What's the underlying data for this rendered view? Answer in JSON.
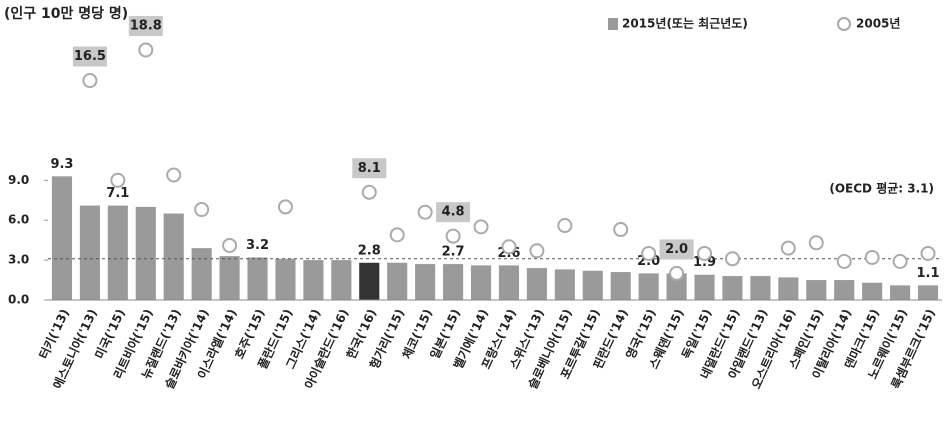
{
  "chart_data": {
    "type": "bar",
    "y_label": "(인구 10만 명당 명)",
    "categories": [
      "터키('13)",
      "에스토니아('13)",
      "미국('15)",
      "리트비아('15)",
      "뉴질랜드('13)",
      "슬로바키아('14)",
      "이스라엘('14)",
      "호주('15)",
      "폴란드('15)",
      "그리스('14)",
      "아이슬란드('16)",
      "한국('16)",
      "헝가리('15)",
      "체코('15)",
      "일본('15)",
      "벨기에('14)",
      "프랑스('14)",
      "스위스('13)",
      "슬로베니아('15)",
      "포르투갈('15)",
      "핀란드('14)",
      "영국('15)",
      "스웨덴('15)",
      "독일('15)",
      "네덜란드('15)",
      "아일랜드('13)",
      "오스트리아('16)",
      "스페인('15)",
      "이탈리아('14)",
      "덴마크('15)",
      "노르웨이('15)",
      "룩셈부르크('15)"
    ],
    "series": [
      {
        "name": "2015년(또는 최근년도)",
        "mark": "bar",
        "color": "#9a9a9a",
        "colors": [
          "#9a9a9a",
          "#9a9a9a",
          "#9a9a9a",
          "#9a9a9a",
          "#9a9a9a",
          "#9a9a9a",
          "#9a9a9a",
          "#9a9a9a",
          "#9a9a9a",
          "#9a9a9a",
          "#9a9a9a",
          "#333333",
          "#9a9a9a",
          "#9a9a9a",
          "#9a9a9a",
          "#9a9a9a",
          "#9a9a9a",
          "#9a9a9a",
          "#9a9a9a",
          "#9a9a9a",
          "#9a9a9a",
          "#9a9a9a",
          "#9a9a9a",
          "#9a9a9a",
          "#9a9a9a",
          "#9a9a9a",
          "#9a9a9a",
          "#9a9a9a",
          "#9a9a9a",
          "#9a9a9a",
          "#9a9a9a",
          "#9a9a9a"
        ],
        "values": [
          9.3,
          7.1,
          7.1,
          7.0,
          6.5,
          3.9,
          3.3,
          3.2,
          3.1,
          3.0,
          3.0,
          2.8,
          2.8,
          2.7,
          2.7,
          2.6,
          2.6,
          2.4,
          2.3,
          2.2,
          2.1,
          2.0,
          2.0,
          1.9,
          1.8,
          1.8,
          1.7,
          1.5,
          1.5,
          1.3,
          1.1,
          1.1
        ],
        "value_labels": [
          "9.3",
          null,
          "7.1",
          null,
          null,
          null,
          null,
          "3.2",
          null,
          null,
          null,
          "2.8",
          null,
          null,
          "2.7",
          null,
          "2.6",
          null,
          null,
          null,
          null,
          "2.0",
          null,
          "1.9",
          null,
          null,
          null,
          null,
          null,
          null,
          null,
          "1.1"
        ]
      },
      {
        "name": "2005년",
        "mark": "circle",
        "color": "#aaaaaa",
        "values": [
          null,
          16.5,
          9.0,
          18.8,
          9.4,
          6.8,
          4.1,
          null,
          7.0,
          null,
          null,
          8.1,
          4.9,
          6.6,
          4.8,
          5.5,
          4.0,
          3.7,
          5.6,
          null,
          5.3,
          3.5,
          2.0,
          3.5,
          3.1,
          null,
          3.9,
          4.3,
          2.9,
          3.2,
          2.9,
          3.5
        ],
        "value_labels": [
          null,
          "16.5",
          null,
          "18.8",
          null,
          null,
          null,
          null,
          null,
          null,
          null,
          "8.1",
          null,
          null,
          "4.8",
          null,
          null,
          null,
          null,
          null,
          null,
          null,
          "2.0",
          null,
          null,
          null,
          null,
          null,
          null,
          null,
          null,
          null
        ]
      }
    ],
    "reference_line": {
      "value": 3.1,
      "label": "(OECD 평균: 3.1)"
    },
    "ylim": [
      0,
      20
    ],
    "yticks": [
      {
        "value": 0,
        "label": "0.0"
      },
      {
        "value": 3,
        "label": "3.0"
      },
      {
        "value": 6,
        "label": "6.0"
      },
      {
        "value": 9,
        "label": "9.0"
      }
    ],
    "legend": "top-right"
  }
}
